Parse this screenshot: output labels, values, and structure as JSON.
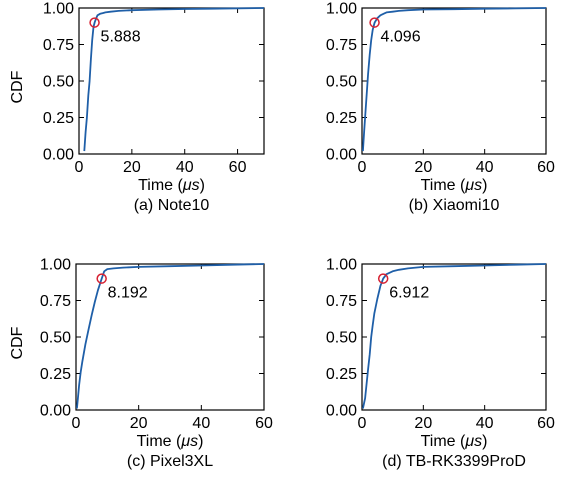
{
  "chart_data": [
    {
      "type": "line",
      "caption": "(a) Note10",
      "xlabel": "Time (μs)",
      "ylabel": "CDF",
      "xlim": [
        0,
        70
      ],
      "ylim": [
        0,
        1
      ],
      "xticks": [
        0,
        20,
        40,
        60
      ],
      "xtick_labels": [
        "0",
        "20",
        "40",
        "60"
      ],
      "yticks": [
        0,
        0.25,
        0.5,
        0.75,
        1
      ],
      "ytick_labels": [
        "0.00",
        "0.25",
        "0.50",
        "0.75",
        "1.00"
      ],
      "annotation": {
        "x": 5.888,
        "y": 0.9,
        "label": "5.888"
      },
      "series": [
        {
          "color": "#1f5fa8",
          "x": [
            2,
            2.5,
            3,
            3.5,
            4,
            4.5,
            5,
            5.5,
            5.888,
            6.5,
            7,
            8,
            9,
            10,
            12,
            15,
            20,
            30,
            40,
            50,
            60,
            70
          ],
          "y": [
            0.02,
            0.15,
            0.25,
            0.4,
            0.5,
            0.65,
            0.78,
            0.87,
            0.9,
            0.93,
            0.95,
            0.96,
            0.965,
            0.97,
            0.975,
            0.98,
            0.985,
            0.99,
            0.993,
            0.995,
            0.997,
            1.0
          ]
        }
      ]
    },
    {
      "type": "line",
      "caption": "(b) Xiaomi10",
      "xlabel": "Time (μs)",
      "ylabel": "",
      "xlim": [
        0,
        60
      ],
      "ylim": [
        0,
        1
      ],
      "xticks": [
        0,
        20,
        40,
        60
      ],
      "xtick_labels": [
        "0",
        "20",
        "40",
        "60"
      ],
      "yticks": [
        0,
        0.25,
        0.5,
        0.75,
        1
      ],
      "ytick_labels": [
        "0.00",
        "0.25",
        "0.50",
        "0.75",
        "1.00"
      ],
      "annotation": {
        "x": 4.096,
        "y": 0.9,
        "label": "4.096"
      },
      "series": [
        {
          "color": "#1f5fa8",
          "x": [
            0.3,
            0.7,
            1,
            1.5,
            2,
            2.5,
            3,
            3.5,
            4.096,
            5,
            6,
            7,
            8,
            10,
            12,
            15,
            20,
            30,
            40,
            50,
            60
          ],
          "y": [
            0.02,
            0.15,
            0.25,
            0.4,
            0.55,
            0.68,
            0.78,
            0.85,
            0.9,
            0.93,
            0.95,
            0.96,
            0.97,
            0.975,
            0.98,
            0.985,
            0.99,
            0.992,
            0.995,
            0.997,
            1.0
          ]
        }
      ]
    },
    {
      "type": "line",
      "caption": "(c) Pixel3XL",
      "xlabel": "Time (μs)",
      "ylabel": "CDF",
      "xlim": [
        0,
        60
      ],
      "ylim": [
        0,
        1
      ],
      "xticks": [
        0,
        20,
        40,
        60
      ],
      "xtick_labels": [
        "0",
        "20",
        "40",
        "60"
      ],
      "yticks": [
        0,
        0.25,
        0.5,
        0.75,
        1
      ],
      "ytick_labels": [
        "0.00",
        "0.25",
        "0.50",
        "0.75",
        "1.00"
      ],
      "annotation": {
        "x": 8.192,
        "y": 0.9,
        "label": "8.192"
      },
      "series": [
        {
          "color": "#1f5fa8",
          "x": [
            0.3,
            0.6,
            1,
            1.5,
            2,
            3,
            4,
            5,
            6,
            7,
            8.192,
            9,
            10,
            12,
            15,
            20,
            30,
            40,
            50,
            60
          ],
          "y": [
            0.01,
            0.08,
            0.17,
            0.26,
            0.33,
            0.45,
            0.55,
            0.65,
            0.74,
            0.82,
            0.9,
            0.95,
            0.965,
            0.97,
            0.975,
            0.98,
            0.985,
            0.99,
            0.995,
            1.0
          ]
        }
      ]
    },
    {
      "type": "line",
      "caption": "(d) TB-RK3399ProD",
      "xlabel": "Time (μs)",
      "ylabel": "",
      "xlim": [
        0,
        60
      ],
      "ylim": [
        0,
        1
      ],
      "xticks": [
        0,
        20,
        40,
        60
      ],
      "xtick_labels": [
        "0",
        "20",
        "40",
        "60"
      ],
      "yticks": [
        0,
        0.25,
        0.5,
        0.75,
        1
      ],
      "ytick_labels": [
        "0.00",
        "0.25",
        "0.50",
        "0.75",
        "1.00"
      ],
      "annotation": {
        "x": 6.912,
        "y": 0.9,
        "label": "6.912"
      },
      "series": [
        {
          "color": "#1f5fa8",
          "x": [
            0.3,
            1,
            1.5,
            2,
            2.5,
            3,
            3.5,
            4,
            5,
            6,
            6.912,
            8,
            10,
            12,
            15,
            20,
            30,
            40,
            50,
            60
          ],
          "y": [
            0.01,
            0.08,
            0.18,
            0.28,
            0.38,
            0.5,
            0.58,
            0.66,
            0.76,
            0.85,
            0.9,
            0.93,
            0.95,
            0.96,
            0.97,
            0.98,
            0.985,
            0.99,
            0.995,
            1.0
          ]
        }
      ]
    }
  ],
  "style": {
    "line_color": "#1f5fa8",
    "marker_color": "#d62031"
  }
}
